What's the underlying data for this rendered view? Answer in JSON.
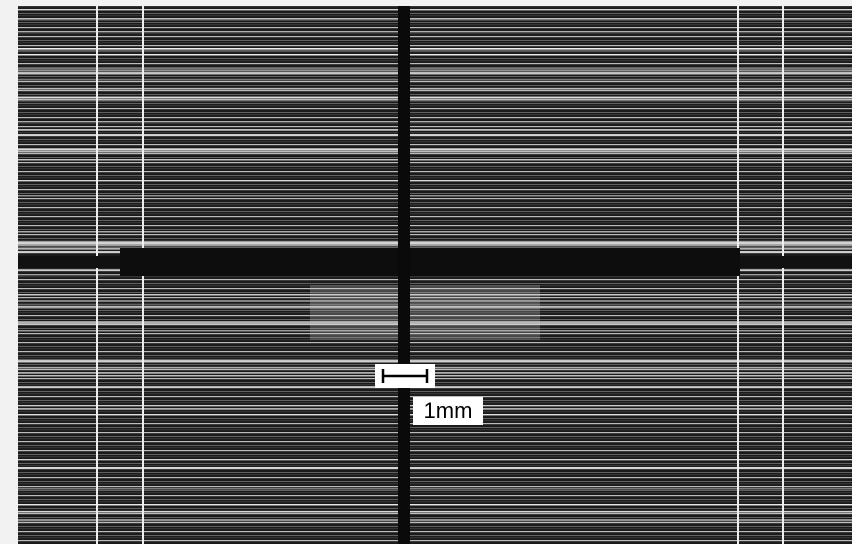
{
  "scale_bar": {
    "label": "1mm"
  }
}
